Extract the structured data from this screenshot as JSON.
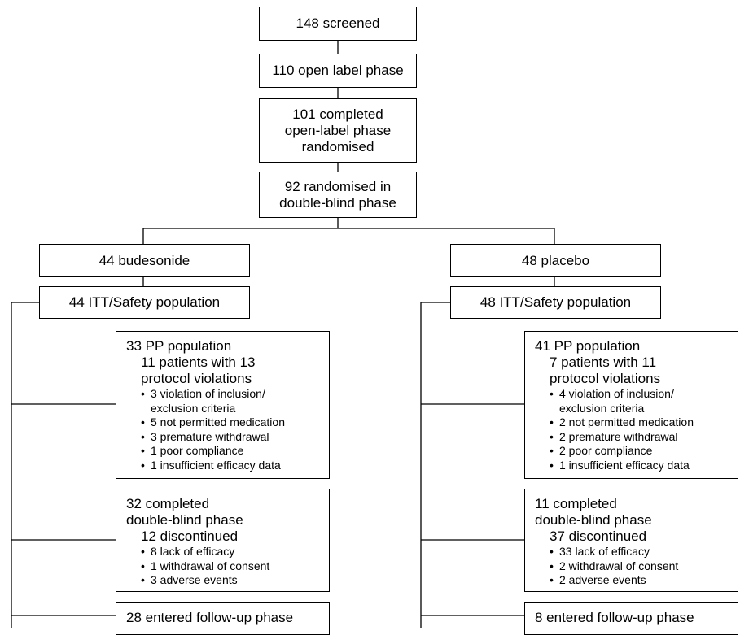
{
  "nodes": [
    {
      "lines": [
        "148 screened"
      ]
    },
    {
      "lines": [
        "110 open label phase"
      ]
    },
    {
      "lines": [
        "101 completed",
        "open-label phase",
        "randomised"
      ]
    },
    {
      "lines": [
        "92 randomised in",
        "double-blind phase"
      ]
    }
  ],
  "arms": [
    {
      "group": "44 budesonide",
      "itt": "44 ITT/Safety population",
      "pp": {
        "title": "33 PP population",
        "subtitle": [
          "11 patients with 13",
          "protocol violations"
        ],
        "items": [
          "3 violation of inclusion/",
          "exclusion criteria",
          "5 not permitted medication",
          "3 premature withdrawal",
          "1 poor compliance",
          "1 insufficient efficacy data"
        ]
      },
      "completed": {
        "title": [
          "32 completed",
          "double-blind phase"
        ],
        "subtitle": [
          "12 discontinued"
        ],
        "items": [
          "8 lack of efficacy",
          "1 withdrawal of consent",
          "3 adverse events"
        ]
      },
      "followup": "28 entered follow-up phase"
    },
    {
      "group": "48 placebo",
      "itt": "48 ITT/Safety population",
      "pp": {
        "title": "41 PP population",
        "subtitle": [
          "7 patients with 11",
          "protocol violations"
        ],
        "items": [
          "4 violation of inclusion/",
          "exclusion criteria",
          "2 not permitted medication",
          "2 premature withdrawal",
          "2 poor compliance",
          "1 insufficient efficacy data"
        ]
      },
      "completed": {
        "title": [
          "11 completed",
          "double-blind phase"
        ],
        "subtitle": [
          "37 discontinued"
        ],
        "items": [
          "33 lack of efficacy",
          "2 withdrawal of consent",
          "2 adverse events"
        ]
      },
      "followup": "8 entered follow-up phase"
    }
  ]
}
